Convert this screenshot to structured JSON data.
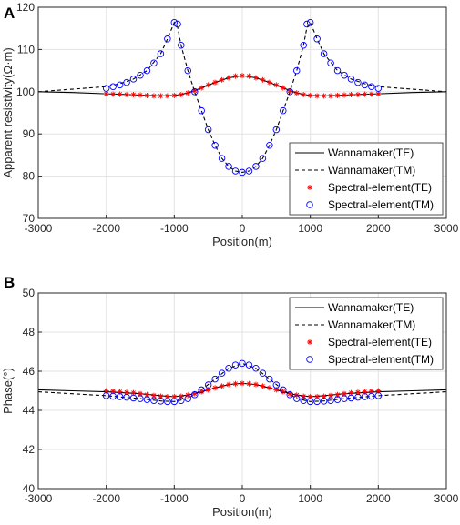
{
  "chart_data": [
    {
      "type": "line",
      "panel_label": "A",
      "xlabel": "Position(m)",
      "ylabel": "Apparent resistivity(Ω·m)",
      "xlim": [
        -3000,
        3000
      ],
      "ylim": [
        70,
        120
      ],
      "xticks": [
        -3000,
        -2000,
        -1000,
        0,
        1000,
        2000,
        3000
      ],
      "yticks": [
        70,
        80,
        90,
        100,
        110,
        120
      ],
      "grid": true,
      "legend_position": "bottom-right",
      "series": [
        {
          "name": "Wannamaker(TE)",
          "style": "solid",
          "color": "#000000",
          "x": [
            -3000,
            -2500,
            -2000,
            -1800,
            -1500,
            -1200,
            -1000,
            -800,
            -600,
            -400,
            -200,
            0,
            200,
            400,
            600,
            800,
            1000,
            1200,
            1500,
            1800,
            2000,
            2500,
            3000
          ],
          "values": [
            100.0,
            99.8,
            99.5,
            99.4,
            99.2,
            99.0,
            99.1,
            99.7,
            100.9,
            102.2,
            103.3,
            103.8,
            103.3,
            102.2,
            100.9,
            99.7,
            99.1,
            99.0,
            99.2,
            99.4,
            99.5,
            99.8,
            100.0
          ]
        },
        {
          "name": "Wannamaker(TM)",
          "style": "dashed",
          "color": "#000000",
          "x": [
            -3000,
            -2500,
            -2000,
            -1800,
            -1600,
            -1400,
            -1200,
            -1100,
            -1000,
            -950,
            -900,
            -800,
            -700,
            -600,
            -500,
            -400,
            -300,
            -200,
            -100,
            0,
            100,
            200,
            300,
            400,
            500,
            600,
            700,
            800,
            900,
            950,
            1000,
            1100,
            1200,
            1400,
            1600,
            1800,
            2000,
            2500,
            3000
          ],
          "values": [
            100.0,
            100.6,
            101.2,
            101.9,
            103.0,
            105.0,
            109.0,
            112.5,
            116.4,
            115.2,
            111.0,
            105.0,
            100.0,
            95.5,
            91.0,
            87.3,
            84.2,
            82.3,
            81.2,
            80.9,
            81.2,
            82.3,
            84.2,
            87.3,
            91.0,
            95.5,
            100.0,
            105.0,
            111.0,
            115.2,
            116.4,
            112.5,
            109.0,
            105.0,
            103.0,
            101.9,
            101.2,
            100.6,
            100.0
          ]
        },
        {
          "name": "Spectral-element(TE)",
          "marker": "asterisk",
          "color": "#ff0000",
          "x": [
            -2000,
            -1900,
            -1800,
            -1700,
            -1600,
            -1500,
            -1400,
            -1300,
            -1200,
            -1100,
            -1000,
            -900,
            -800,
            -700,
            -600,
            -500,
            -400,
            -300,
            -200,
            -100,
            0,
            100,
            200,
            300,
            400,
            500,
            600,
            700,
            800,
            900,
            1000,
            1100,
            1200,
            1300,
            1400,
            1500,
            1600,
            1700,
            1800,
            1900,
            2000
          ],
          "values": [
            99.5,
            99.4,
            99.4,
            99.3,
            99.3,
            99.2,
            99.1,
            99.0,
            99.0,
            99.0,
            99.1,
            99.3,
            99.7,
            100.2,
            100.9,
            101.6,
            102.2,
            102.8,
            103.3,
            103.7,
            103.8,
            103.7,
            103.3,
            102.8,
            102.2,
            101.6,
            100.9,
            100.2,
            99.7,
            99.3,
            99.1,
            99.0,
            99.0,
            99.0,
            99.1,
            99.2,
            99.3,
            99.3,
            99.4,
            99.4,
            99.5
          ]
        },
        {
          "name": "Spectral-element(TM)",
          "marker": "circle",
          "color": "#0000ff",
          "x": [
            -2000,
            -1900,
            -1800,
            -1700,
            -1600,
            -1500,
            -1400,
            -1300,
            -1200,
            -1100,
            -1000,
            -950,
            -900,
            -800,
            -700,
            -600,
            -500,
            -400,
            -300,
            -200,
            -100,
            0,
            100,
            200,
            300,
            400,
            500,
            600,
            700,
            800,
            900,
            950,
            1000,
            1100,
            1200,
            1300,
            1400,
            1500,
            1600,
            1700,
            1800,
            1900,
            2000
          ],
          "values": [
            100.8,
            101.2,
            101.6,
            102.2,
            103.0,
            103.9,
            105.0,
            106.8,
            109.0,
            112.5,
            116.4,
            116.0,
            111.0,
            105.0,
            100.0,
            95.5,
            91.0,
            87.3,
            84.2,
            82.3,
            81.2,
            80.9,
            81.2,
            82.3,
            84.2,
            87.3,
            91.0,
            95.5,
            100.0,
            105.0,
            111.0,
            116.0,
            116.4,
            112.5,
            109.0,
            106.8,
            105.0,
            103.9,
            103.0,
            102.2,
            101.6,
            101.2,
            100.8
          ]
        }
      ]
    },
    {
      "type": "line",
      "panel_label": "B",
      "xlabel": "Position(m)",
      "ylabel": "Phase(°)",
      "xlim": [
        -3000,
        3000
      ],
      "ylim": [
        40,
        50
      ],
      "xticks": [
        -3000,
        -2000,
        -1000,
        0,
        1000,
        2000,
        3000
      ],
      "yticks": [
        40,
        42,
        44,
        46,
        48,
        50
      ],
      "grid": true,
      "legend_position": "top-right",
      "series": [
        {
          "name": "Wannamaker(TE)",
          "style": "solid",
          "color": "#000000",
          "x": [
            -3000,
            -2500,
            -2000,
            -1500,
            -1200,
            -1000,
            -800,
            -600,
            -400,
            -200,
            0,
            200,
            400,
            600,
            800,
            1000,
            1200,
            1500,
            2000,
            2500,
            3000
          ],
          "values": [
            45.05,
            45.0,
            44.95,
            44.85,
            44.75,
            44.7,
            44.78,
            44.95,
            45.15,
            45.32,
            45.38,
            45.32,
            45.15,
            44.95,
            44.78,
            44.7,
            44.75,
            44.85,
            44.95,
            45.0,
            45.05
          ]
        },
        {
          "name": "Wannamaker(TM)",
          "style": "dashed",
          "color": "#000000",
          "x": [
            -3000,
            -2500,
            -2000,
            -1500,
            -1200,
            -1000,
            -800,
            -600,
            -400,
            -200,
            0,
            200,
            400,
            600,
            800,
            1000,
            1200,
            1500,
            2000,
            2500,
            3000
          ],
          "values": [
            44.95,
            44.85,
            44.75,
            44.6,
            44.48,
            44.45,
            44.6,
            45.05,
            45.6,
            46.15,
            46.4,
            46.15,
            45.6,
            45.05,
            44.6,
            44.45,
            44.48,
            44.6,
            44.75,
            44.85,
            44.95
          ]
        },
        {
          "name": "Spectral-element(TE)",
          "marker": "asterisk",
          "color": "#ff0000",
          "x": [
            -2000,
            -1900,
            -1800,
            -1700,
            -1600,
            -1500,
            -1400,
            -1300,
            -1200,
            -1100,
            -1000,
            -900,
            -800,
            -700,
            -600,
            -500,
            -400,
            -300,
            -200,
            -100,
            0,
            100,
            200,
            300,
            400,
            500,
            600,
            700,
            800,
            900,
            1000,
            1100,
            1200,
            1300,
            1400,
            1500,
            1600,
            1700,
            1800,
            1900,
            2000
          ],
          "values": [
            45.0,
            44.98,
            44.95,
            44.92,
            44.9,
            44.85,
            44.8,
            44.76,
            44.72,
            44.7,
            44.7,
            44.72,
            44.78,
            44.85,
            44.95,
            45.05,
            45.15,
            45.24,
            45.32,
            45.36,
            45.38,
            45.36,
            45.32,
            45.24,
            45.15,
            45.05,
            44.95,
            44.85,
            44.78,
            44.72,
            44.7,
            44.7,
            44.72,
            44.76,
            44.8,
            44.85,
            44.9,
            44.92,
            44.95,
            44.98,
            45.0
          ]
        },
        {
          "name": "Spectral-element(TM)",
          "marker": "circle",
          "color": "#0000ff",
          "x": [
            -2000,
            -1900,
            -1800,
            -1700,
            -1600,
            -1500,
            -1400,
            -1300,
            -1200,
            -1100,
            -1000,
            -900,
            -800,
            -700,
            -600,
            -500,
            -400,
            -300,
            -200,
            -100,
            0,
            100,
            200,
            300,
            400,
            500,
            600,
            700,
            800,
            900,
            1000,
            1100,
            1200,
            1300,
            1400,
            1500,
            1600,
            1700,
            1800,
            1900,
            2000
          ],
          "values": [
            44.75,
            44.72,
            44.7,
            44.67,
            44.63,
            44.6,
            44.55,
            44.5,
            44.47,
            44.45,
            44.45,
            44.5,
            44.6,
            44.8,
            45.05,
            45.3,
            45.6,
            45.9,
            46.15,
            46.32,
            46.4,
            46.32,
            46.15,
            45.9,
            45.6,
            45.3,
            45.05,
            44.8,
            44.6,
            44.5,
            44.45,
            44.45,
            44.47,
            44.5,
            44.55,
            44.6,
            44.63,
            44.67,
            44.7,
            44.72,
            44.75
          ]
        }
      ]
    }
  ]
}
